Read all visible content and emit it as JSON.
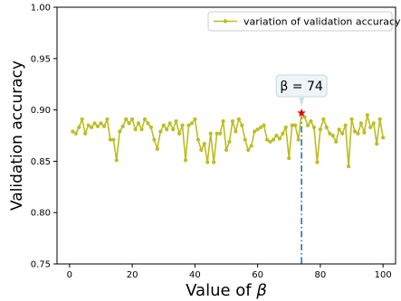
{
  "chart_data": {
    "type": "line",
    "xlabel_prefix": "Value of ",
    "xlabel_symbol": "β",
    "ylabel": "Validation accuracy",
    "xlim": [
      -4,
      104
    ],
    "ylim": [
      0.75,
      1.0
    ],
    "x_ticks": [
      0,
      20,
      40,
      60,
      80,
      100
    ],
    "y_ticks": [
      0.75,
      0.8,
      0.85,
      0.9,
      0.95,
      1.0
    ],
    "y_tick_labels": [
      "0.75",
      "0.80",
      "0.85",
      "0.90",
      "0.95",
      "1.00"
    ],
    "legend": {
      "label": "variation of validation accuracy",
      "placement": "top-right"
    },
    "series": [
      {
        "name": "variation of validation accuracy",
        "color": "#bcbd22",
        "x": [
          1,
          2,
          3,
          4,
          5,
          6,
          7,
          8,
          9,
          10,
          11,
          12,
          13,
          14,
          15,
          16,
          17,
          18,
          19,
          20,
          21,
          22,
          23,
          24,
          25,
          26,
          27,
          28,
          29,
          30,
          31,
          32,
          33,
          34,
          35,
          36,
          37,
          38,
          39,
          40,
          41,
          42,
          43,
          44,
          45,
          46,
          47,
          48,
          49,
          50,
          51,
          52,
          53,
          54,
          55,
          56,
          57,
          58,
          59,
          60,
          61,
          62,
          63,
          64,
          65,
          66,
          67,
          68,
          69,
          70,
          71,
          72,
          73,
          74,
          75,
          76,
          77,
          78,
          79,
          80,
          81,
          82,
          83,
          84,
          85,
          86,
          87,
          88,
          89,
          90,
          91,
          92,
          93,
          94,
          95,
          96,
          97,
          98,
          99,
          100
        ],
        "values": [
          0.879,
          0.877,
          0.883,
          0.891,
          0.877,
          0.885,
          0.883,
          0.887,
          0.884,
          0.887,
          0.884,
          0.891,
          0.871,
          0.871,
          0.851,
          0.879,
          0.884,
          0.891,
          0.887,
          0.891,
          0.881,
          0.887,
          0.881,
          0.891,
          0.887,
          0.883,
          0.871,
          0.862,
          0.879,
          0.885,
          0.881,
          0.887,
          0.881,
          0.889,
          0.877,
          0.885,
          0.851,
          0.885,
          0.887,
          0.891,
          0.871,
          0.861,
          0.867,
          0.849,
          0.877,
          0.849,
          0.877,
          0.877,
          0.889,
          0.861,
          0.869,
          0.889,
          0.879,
          0.891,
          0.885,
          0.871,
          0.861,
          0.865,
          0.879,
          0.881,
          0.883,
          0.885,
          0.871,
          0.869,
          0.871,
          0.875,
          0.872,
          0.877,
          0.883,
          0.853,
          0.885,
          0.885,
          0.871,
          0.897,
          0.893,
          0.885,
          0.889,
          0.883,
          0.849,
          0.881,
          0.891,
          0.883,
          0.877,
          0.875,
          0.869,
          0.881,
          0.877,
          0.885,
          0.845,
          0.891,
          0.879,
          0.877,
          0.887,
          0.878,
          0.895,
          0.883,
          0.887,
          0.867,
          0.891,
          0.873
        ]
      }
    ],
    "highlight": {
      "x": 74,
      "y": 0.897,
      "label": "β = 74",
      "marker_color": "#e8000b",
      "line_color": "#1f77b4"
    }
  }
}
